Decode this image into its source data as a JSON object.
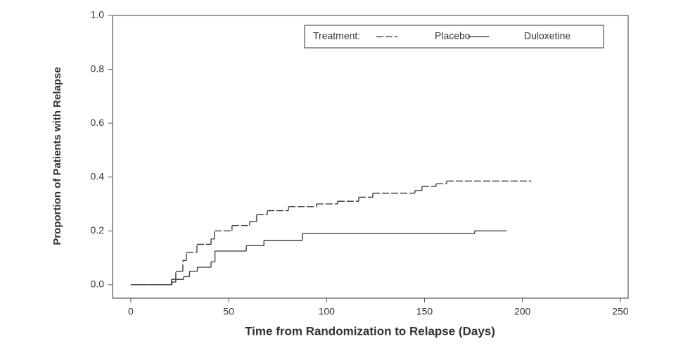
{
  "chart_data": {
    "type": "step",
    "x_label": "Time from Randomization to Relapse (Days)",
    "y_label": "Proportion of Patients with Relapse",
    "legend_title": "Treatment:",
    "series": [
      {
        "name": "Placebo",
        "color": "#333333",
        "dashed": true,
        "x": [
          0,
          20.8,
          23,
          26.6,
          28.4,
          33.8,
          41,
          42.7,
          51.7,
          60.7,
          64.3,
          69.7,
          80.5,
          94.8,
          105.6,
          116.4,
          123.6,
          145.1,
          148.7,
          155.9,
          161.3,
          204.4
        ],
        "values": [
          0,
          0.02,
          0.05,
          0.09,
          0.12,
          0.15,
          0.17,
          0.2,
          0.22,
          0.235,
          0.26,
          0.275,
          0.29,
          0.3,
          0.31,
          0.325,
          0.34,
          0.35,
          0.365,
          0.375,
          0.385,
          0.385
        ]
      },
      {
        "name": "Duloxetine",
        "color": "#333333",
        "dashed": false,
        "x": [
          0,
          21,
          23,
          27,
          30,
          34,
          41,
          43,
          59,
          68,
          87.6,
          175.6,
          191.8
        ],
        "values": [
          0,
          0.01,
          0.02,
          0.03,
          0.05,
          0.065,
          0.085,
          0.125,
          0.145,
          0.165,
          0.19,
          0.2,
          0.2
        ]
      }
    ],
    "xlim": [
      -9.3,
      254
    ],
    "xticks": [
      0,
      50,
      100,
      150,
      200,
      250
    ],
    "ylim": [
      -0.05,
      1
    ],
    "yticks": [
      {
        "value": 0,
        "label": "0.0"
      },
      0.2,
      0.4,
      0.6,
      0.8,
      {
        "value": 1,
        "label": "1.0"
      }
    ]
  }
}
